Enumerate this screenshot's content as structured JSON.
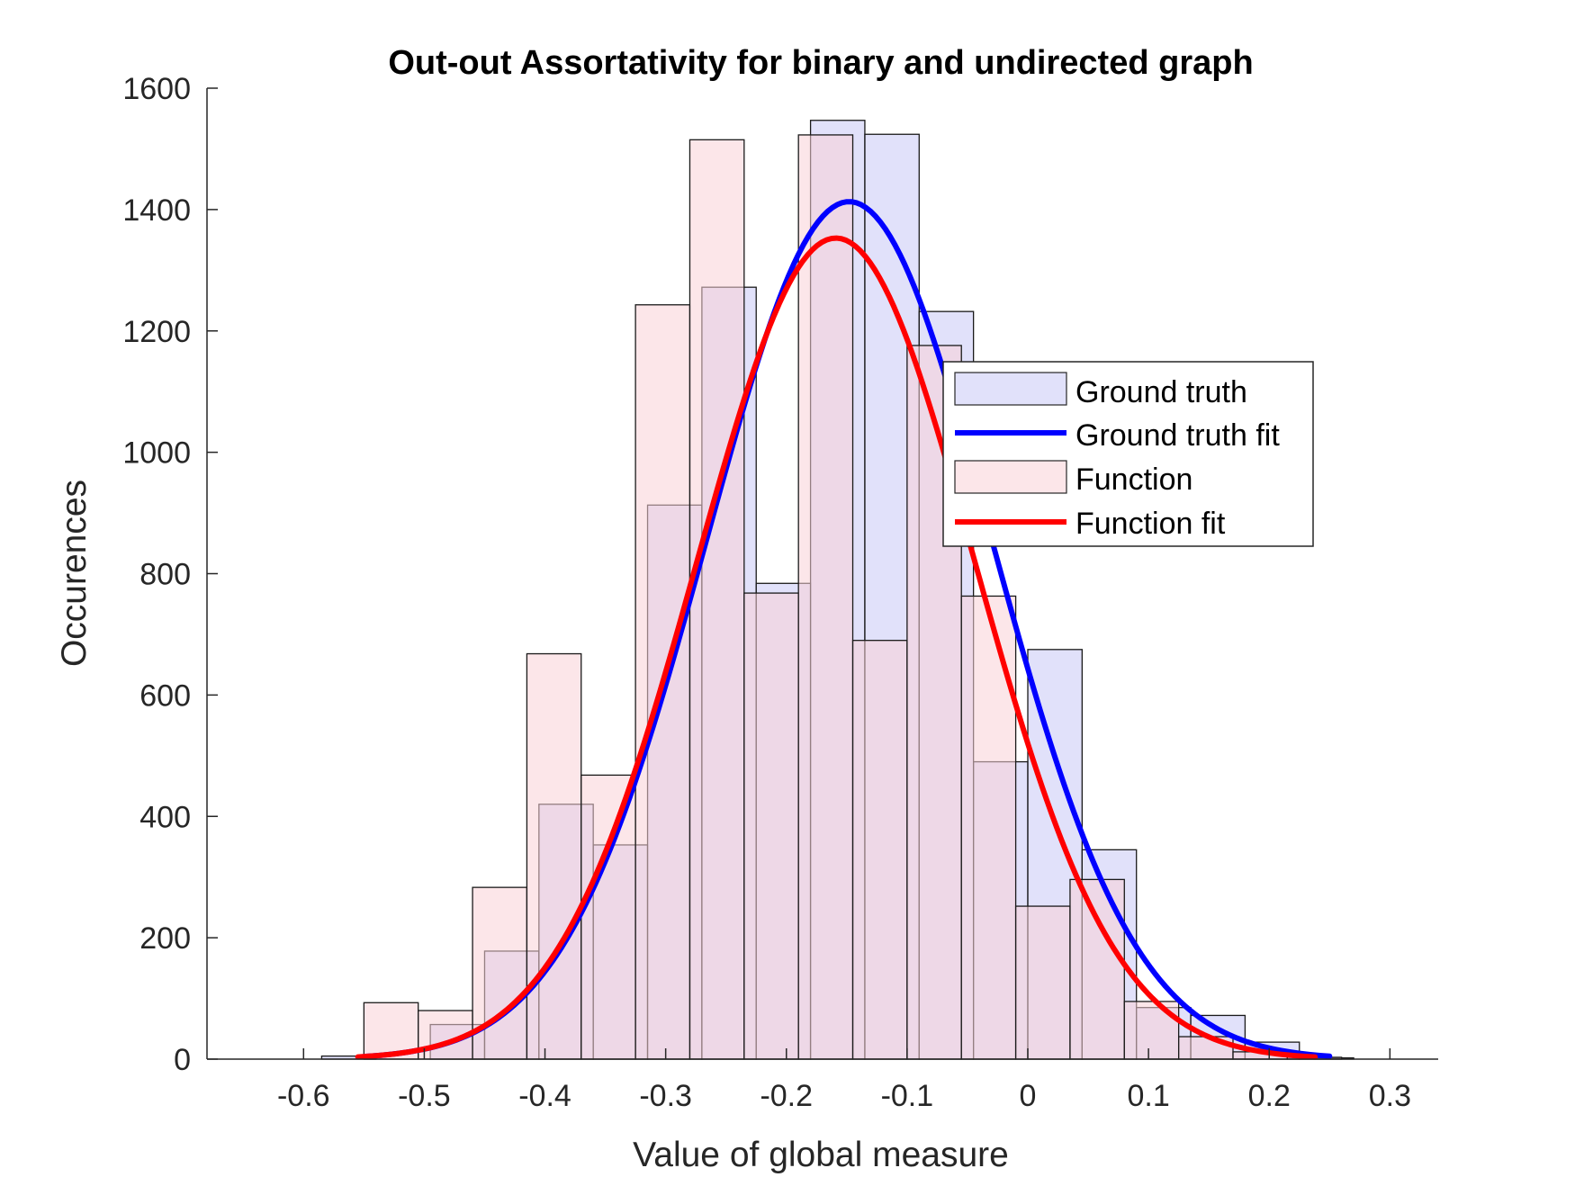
{
  "chart_data": {
    "type": "bar",
    "title": "Out-out Assortativity for binary and undirected graph",
    "xlabel": "Value of global measure",
    "ylabel": "Occurences",
    "xlim": [
      -0.68,
      0.34
    ],
    "ylim": [
      0,
      1600
    ],
    "xticks": [
      -0.6,
      -0.5,
      -0.4,
      -0.3,
      -0.2,
      -0.1,
      0,
      0.1,
      0.2,
      0.3
    ],
    "xtick_labels": [
      "-0.6",
      "-0.5",
      "-0.4",
      "-0.3",
      "-0.2",
      "-0.1",
      "0",
      "0.1",
      "0.2",
      "0.3"
    ],
    "yticks": [
      0,
      200,
      400,
      600,
      800,
      1000,
      1200,
      1400,
      1600
    ],
    "ytick_labels": [
      "0",
      "200",
      "400",
      "600",
      "800",
      "1000",
      "1200",
      "1400",
      "1600"
    ],
    "grid": false,
    "legend_position": "right",
    "series": [
      {
        "name": "Ground truth",
        "kind": "histogram",
        "color": "#c8c8f5",
        "bins": [
          {
            "x0": -0.585,
            "x1": -0.54,
            "value": 5
          },
          {
            "x0": -0.54,
            "x1": -0.495,
            "value": 0
          },
          {
            "x0": -0.495,
            "x1": -0.45,
            "value": 57
          },
          {
            "x0": -0.45,
            "x1": -0.405,
            "value": 178
          },
          {
            "x0": -0.405,
            "x1": -0.36,
            "value": 420
          },
          {
            "x0": -0.36,
            "x1": -0.315,
            "value": 353
          },
          {
            "x0": -0.315,
            "x1": -0.27,
            "value": 913
          },
          {
            "x0": -0.27,
            "x1": -0.225,
            "value": 1272
          },
          {
            "x0": -0.225,
            "x1": -0.18,
            "value": 784
          },
          {
            "x0": -0.18,
            "x1": -0.135,
            "value": 1547
          },
          {
            "x0": -0.135,
            "x1": -0.09,
            "value": 1524
          },
          {
            "x0": -0.09,
            "x1": -0.045,
            "value": 1232
          },
          {
            "x0": -0.045,
            "x1": 0.0,
            "value": 490
          },
          {
            "x0": 0.0,
            "x1": 0.045,
            "value": 675
          },
          {
            "x0": 0.045,
            "x1": 0.09,
            "value": 345
          },
          {
            "x0": 0.09,
            "x1": 0.135,
            "value": 85
          },
          {
            "x0": 0.135,
            "x1": 0.18,
            "value": 72
          },
          {
            "x0": 0.18,
            "x1": 0.225,
            "value": 28
          },
          {
            "x0": 0.225,
            "x1": 0.27,
            "value": 2
          }
        ]
      },
      {
        "name": "Function",
        "kind": "histogram",
        "color": "#fad2d7",
        "bins": [
          {
            "x0": -0.64,
            "x1": -0.595,
            "value": 0
          },
          {
            "x0": -0.595,
            "x1": -0.55,
            "value": 0
          },
          {
            "x0": -0.55,
            "x1": -0.505,
            "value": 93
          },
          {
            "x0": -0.505,
            "x1": -0.46,
            "value": 80
          },
          {
            "x0": -0.46,
            "x1": -0.415,
            "value": 283
          },
          {
            "x0": -0.415,
            "x1": -0.37,
            "value": 668
          },
          {
            "x0": -0.37,
            "x1": -0.325,
            "value": 468
          },
          {
            "x0": -0.325,
            "x1": -0.28,
            "value": 1243
          },
          {
            "x0": -0.28,
            "x1": -0.235,
            "value": 1515
          },
          {
            "x0": -0.235,
            "x1": -0.19,
            "value": 768
          },
          {
            "x0": -0.19,
            "x1": -0.145,
            "value": 1523
          },
          {
            "x0": -0.145,
            "x1": -0.1,
            "value": 690
          },
          {
            "x0": -0.1,
            "x1": -0.055,
            "value": 1176
          },
          {
            "x0": -0.055,
            "x1": -0.01,
            "value": 763
          },
          {
            "x0": -0.01,
            "x1": 0.035,
            "value": 252
          },
          {
            "x0": 0.035,
            "x1": 0.08,
            "value": 296
          },
          {
            "x0": 0.08,
            "x1": 0.125,
            "value": 95
          },
          {
            "x0": 0.125,
            "x1": 0.17,
            "value": 37
          },
          {
            "x0": 0.17,
            "x1": 0.215,
            "value": 12
          },
          {
            "x0": 0.215,
            "x1": 0.26,
            "value": 3
          }
        ]
      },
      {
        "name": "Ground truth fit",
        "kind": "line",
        "color": "#0000ff",
        "mean": -0.148,
        "sd": 0.118,
        "peak": 1413,
        "x_range": [
          -0.55,
          0.25
        ]
      },
      {
        "name": "Function fit",
        "kind": "line",
        "color": "#ff0000",
        "mean": -0.159,
        "sd": 0.115,
        "peak": 1353,
        "x_range": [
          -0.555,
          0.238
        ]
      }
    ]
  }
}
